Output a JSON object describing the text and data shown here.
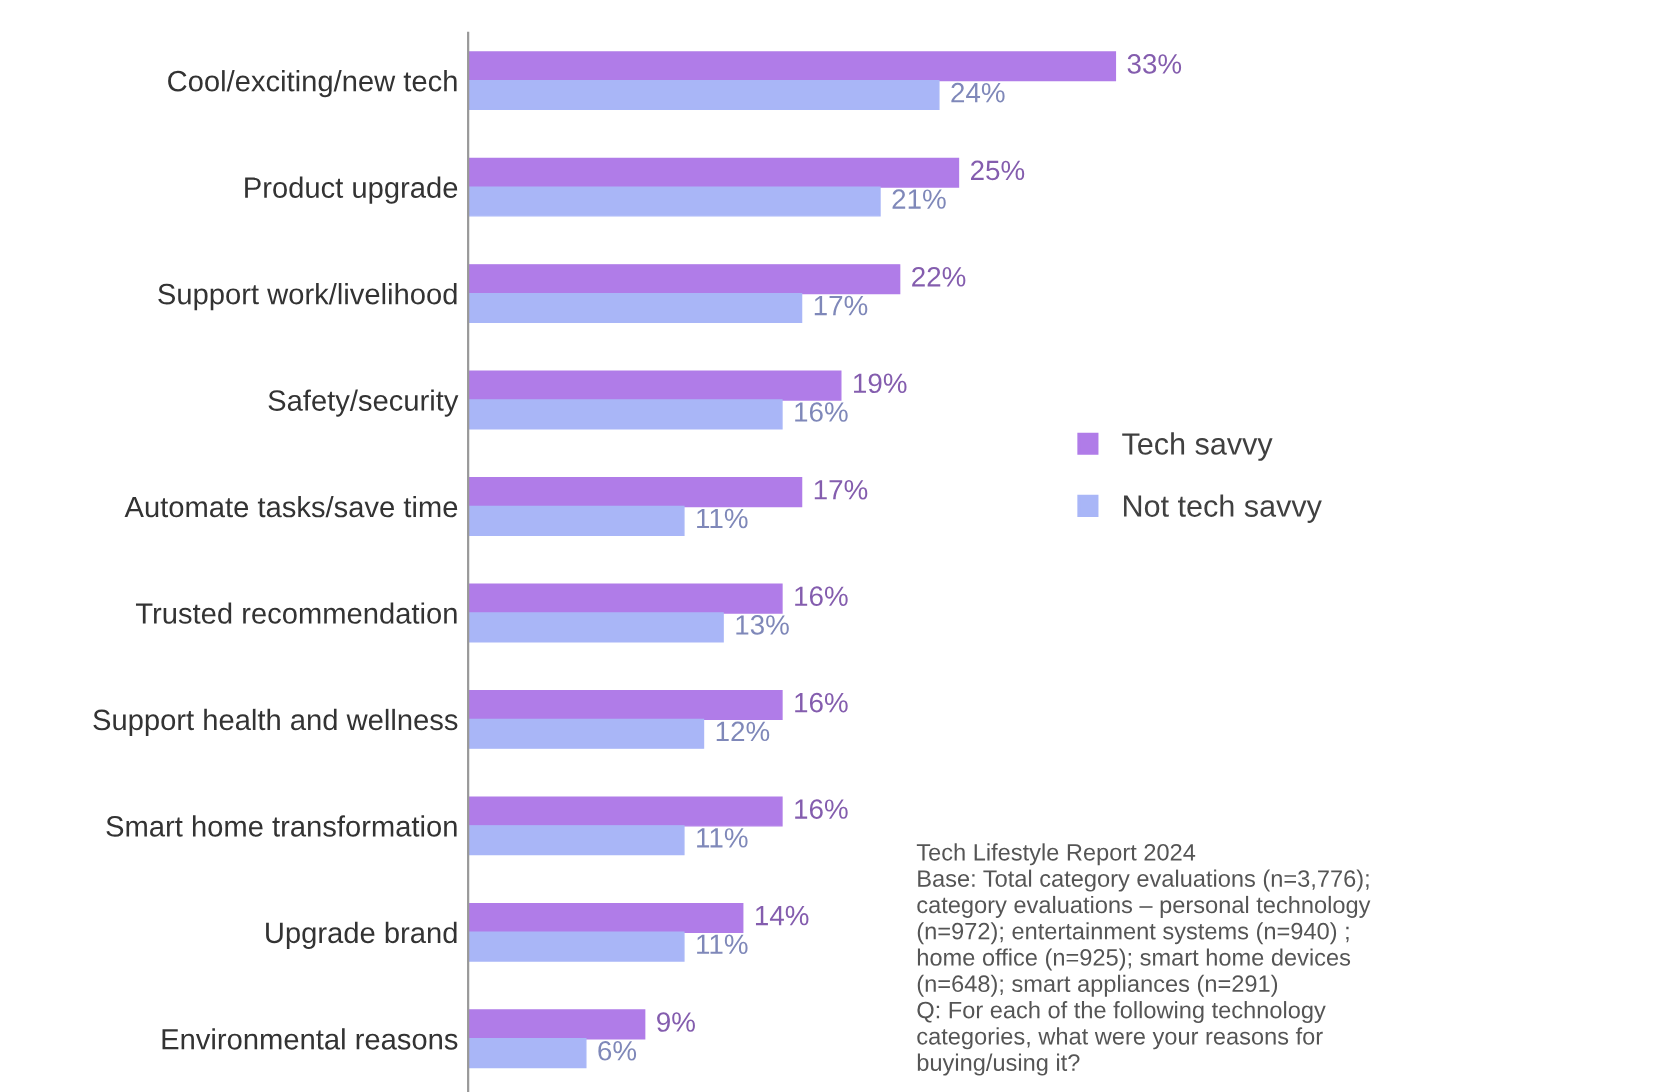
{
  "chart_data": {
    "type": "bar",
    "orientation": "horizontal",
    "categories": [
      "Cool/exciting/new tech",
      "Product upgrade",
      "Support work/livelihood",
      "Safety/security",
      "Automate tasks/save time",
      "Trusted recommendation",
      "Support health and wellness",
      "Smart home transformation",
      "Upgrade brand",
      "Environmental reasons"
    ],
    "series": [
      {
        "name": "Tech savvy",
        "color": "#b07ce8",
        "values": [
          33,
          25,
          22,
          19,
          17,
          16,
          16,
          16,
          14,
          9
        ],
        "value_labels": [
          "33%",
          "25%",
          "22%",
          "19%",
          "17%",
          "16%",
          "16%",
          "16%",
          "14%",
          "9%"
        ]
      },
      {
        "name": "Not tech savvy",
        "color": "#a9b6f7",
        "values": [
          24,
          21,
          17,
          16,
          11,
          13,
          12,
          11,
          11,
          6
        ],
        "value_labels": [
          "24%",
          "21%",
          "17%",
          "16%",
          "11%",
          "13%",
          "12%",
          "11%",
          "11%",
          "6%"
        ]
      }
    ],
    "legend": "right",
    "grid": false,
    "tick_labels": "y",
    "annotations": [
      "Tech Lifestyle Report 2024\nBase: Total category evaluations (n=3,776);\ncategory evaluations – personal technology\n(n=972); entertainment systems (n=940) ;\nhome office (n=925); smart home devices\n(n=648); smart appliances (n=291)\nQ: For each of the following technology\ncategories, what were your reasons for\nbuying/using it?"
    ]
  }
}
